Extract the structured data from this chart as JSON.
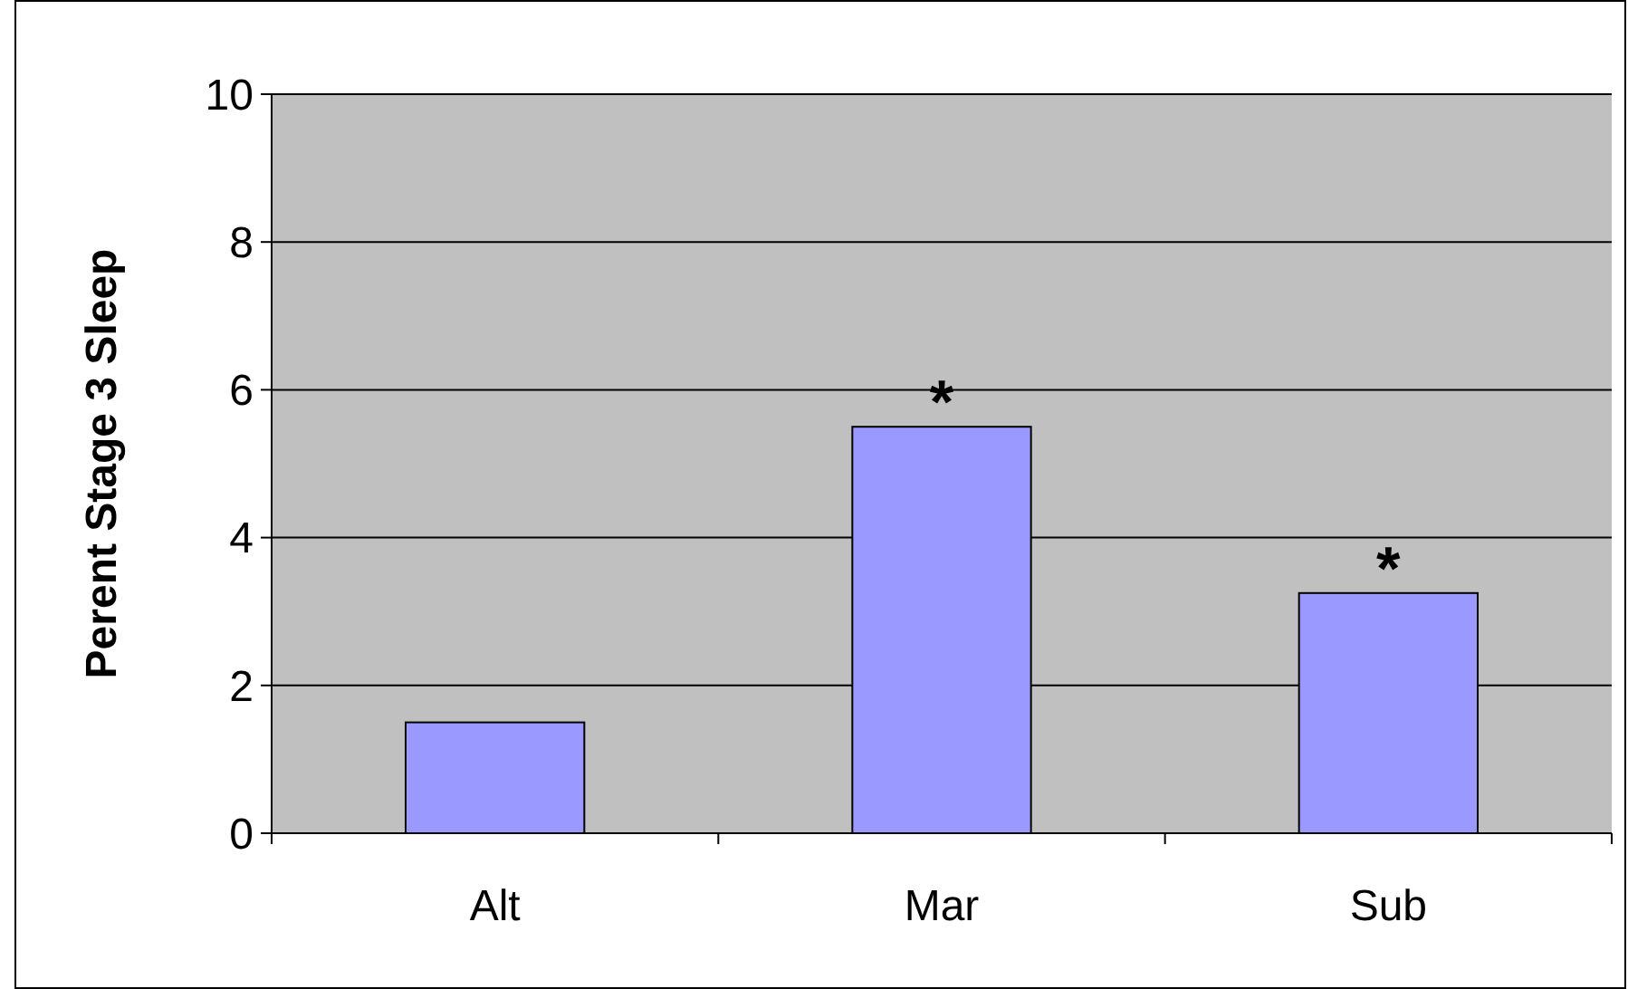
{
  "chart_data": {
    "type": "bar",
    "ylabel": "Perent Stage 3 Sleep",
    "categories": [
      "Alt",
      "Mar",
      "Sub"
    ],
    "values": [
      1.5,
      5.5,
      3.25
    ],
    "color": "#9999ff",
    "ylim": [
      0,
      10
    ],
    "yticks": [
      0,
      2,
      4,
      6,
      8,
      10
    ],
    "grid": "y",
    "annotations": [
      {
        "text": "*",
        "x": "Mar",
        "y": 5.5
      },
      {
        "text": "*",
        "x": "Sub",
        "y": 3.25
      }
    ]
  }
}
